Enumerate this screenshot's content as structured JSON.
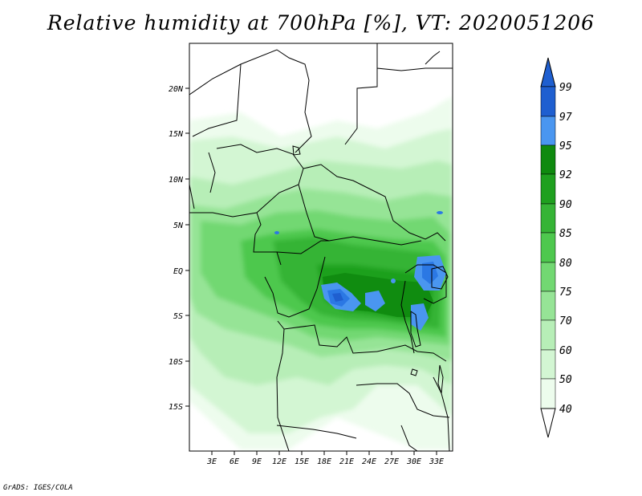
{
  "title": "Relative humidity at 700hPa [%], VT: 2020051206",
  "credit": "GrADS: IGES/COLA",
  "map": {
    "field": "relative_humidity_700hPa",
    "lon_range": [
      0,
      35
    ],
    "lat_range": [
      -20,
      25
    ],
    "lat_ticks": [
      "20N",
      "15N",
      "10N",
      "5N",
      "EQ",
      "5S",
      "10S",
      "15S"
    ],
    "lon_ticks": [
      "3E",
      "6E",
      "9E",
      "12E",
      "15E",
      "18E",
      "21E",
      "24E",
      "27E",
      "30E",
      "33E"
    ]
  },
  "colorbar": {
    "levels": [
      "99",
      "97",
      "95",
      "92",
      "90",
      "85",
      "80",
      "75",
      "70",
      "60",
      "50",
      "40"
    ],
    "colors": [
      "#1f5fd0",
      "#2b78e4",
      "#4a96f0",
      "#0f8a0f",
      "#1fa01f",
      "#36b436",
      "#4ec84e",
      "#72d872",
      "#96e496",
      "#b7eeb7",
      "#d3f6d3",
      "#edfced"
    ]
  }
}
